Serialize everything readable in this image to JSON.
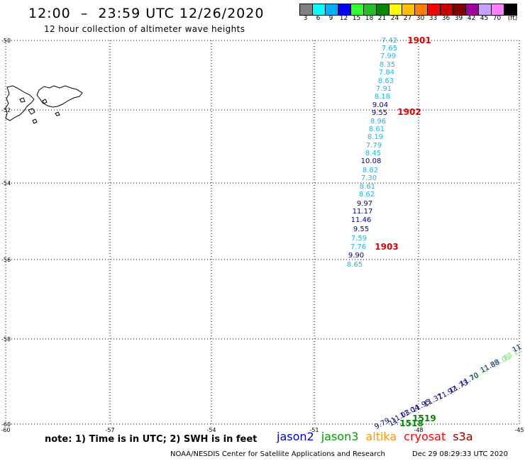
{
  "header": {
    "title": "12:00  –  23:59 UTC 12/26/2020",
    "subtitle": "12 hour collection of altimeter wave heights"
  },
  "legend": {
    "colors": [
      "#808080",
      "#00ffff",
      "#00b0ff",
      "#0000ff",
      "#33ff33",
      "#22c022",
      "#008800",
      "#ffff00",
      "#ffc000",
      "#ff8000",
      "#ff0000",
      "#c80000",
      "#800000",
      "#a000a0",
      "#c8a0ff",
      "#ff80ff",
      "#000000"
    ],
    "labels": [
      "3",
      "6",
      "9",
      "12",
      "15",
      "18",
      "21",
      "24",
      "27",
      "30",
      "33",
      "36",
      "39",
      "42",
      "45",
      "70",
      "(ft)"
    ]
  },
  "axes": {
    "lat_labels": [
      "-50",
      "-52",
      "-54",
      "-56",
      "-58",
      "-60"
    ],
    "lon_labels": [
      "-60",
      "-57",
      "-54",
      "-51",
      "-48",
      "-45"
    ]
  },
  "track_north": {
    "color_dark": "#00008b",
    "color_light": "#1fb4e6",
    "values": [
      {
        "v": "7.42",
        "c": "light"
      },
      {
        "v": "7.65",
        "c": "light"
      },
      {
        "v": "7.99",
        "c": "light"
      },
      {
        "v": "8.35",
        "c": "light"
      },
      {
        "v": "7.84",
        "c": "light"
      },
      {
        "v": "8.63",
        "c": "light"
      },
      {
        "v": "7.91",
        "c": "light"
      },
      {
        "v": "8.18",
        "c": "light"
      },
      {
        "v": "9.04",
        "c": "dark"
      },
      {
        "v": "9.55",
        "c": "dark"
      },
      {
        "v": "8.96",
        "c": "light"
      },
      {
        "v": "8.61",
        "c": "light"
      },
      {
        "v": "8.19",
        "c": "light"
      },
      {
        "v": "7.79",
        "c": "light"
      },
      {
        "v": "8.45",
        "c": "light"
      },
      {
        "v": "10.08",
        "c": "dark"
      },
      {
        "v": "8.82",
        "c": "light"
      },
      {
        "v": "7.30",
        "c": "light"
      },
      {
        "v": "8.61",
        "c": "light"
      },
      {
        "v": "8.62",
        "c": "light"
      },
      {
        "v": "9.97",
        "c": "dark"
      },
      {
        "v": "11.17",
        "c": "dark"
      },
      {
        "v": "11.46",
        "c": "dark"
      },
      {
        "v": "9.55",
        "c": "dark"
      },
      {
        "v": "7.59",
        "c": "light"
      },
      {
        "v": "7.76",
        "c": "light"
      },
      {
        "v": "9.90",
        "c": "dark"
      },
      {
        "v": "8.65",
        "c": "light"
      }
    ],
    "time_tags": [
      "1901",
      "1902",
      "1903"
    ]
  },
  "track_south": {
    "values": [
      {
        "v": "11",
        "c": "dark"
      },
      {
        "v": "13.11",
        "c": "lightgreen"
      },
      {
        "v": "13.05",
        "c": "lightgreen"
      },
      {
        "v": "11.88",
        "c": "dark"
      },
      {
        "v": "12.72",
        "c": "lightgreen"
      },
      {
        "v": "11.70",
        "c": "dark"
      },
      {
        "v": "11.73",
        "c": "dark"
      },
      {
        "v": "11.97",
        "c": "dark"
      },
      {
        "v": "11.37",
        "c": "dark"
      },
      {
        "v": "11.95",
        "c": "dark"
      },
      {
        "v": "11.04",
        "c": "dark"
      },
      {
        "v": "11.03",
        "c": "dark"
      },
      {
        "v": "11",
        "c": "dark"
      },
      {
        "v": "9.79",
        "c": "dark"
      }
    ],
    "time_tags": [
      "1519",
      "1518"
    ]
  },
  "satellites": [
    {
      "name": "jason2",
      "color": "#0000cc"
    },
    {
      "name": "jason3",
      "color": "#00a000"
    },
    {
      "name": "altika",
      "color": "#ff9900"
    },
    {
      "name": "cryosat",
      "color": "#ff0000"
    },
    {
      "name": "s3a",
      "color": "#8b0000"
    }
  ],
  "footer": {
    "note": "note:  1) Time is in UTC;  2) SWH is in feet",
    "credit": "NOAA/NESDIS Center for Satellite Applications and Research",
    "timestamp": "Dec 29 08:29:33 UTC 2020"
  }
}
